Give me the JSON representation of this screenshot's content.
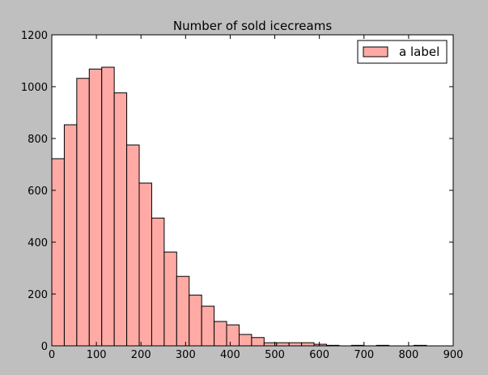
{
  "chart_data": {
    "type": "bar",
    "title": "Number of sold icecreams",
    "xlabel": "",
    "ylabel": "",
    "xlim": [
      0,
      900
    ],
    "ylim": [
      0,
      1200
    ],
    "xticks": [
      0,
      100,
      200,
      300,
      400,
      500,
      600,
      700,
      800,
      900
    ],
    "yticks": [
      0,
      200,
      400,
      600,
      800,
      1000,
      1200
    ],
    "grid": false,
    "legend_position": "top-right",
    "bar_color": "#ffaaa5",
    "edge_color": "#000000",
    "series": [
      {
        "name": "a label",
        "bin_width": 28,
        "bin_starts": [
          0,
          28,
          56,
          84,
          112,
          140,
          168,
          196,
          224,
          252,
          280,
          308,
          336,
          364,
          392,
          420,
          448,
          476,
          504,
          532,
          560,
          588,
          616,
          644,
          672,
          700,
          728,
          756,
          784,
          812,
          840
        ],
        "values": [
          722,
          853,
          1032,
          1068,
          1075,
          976,
          775,
          628,
          493,
          362,
          268,
          196,
          153,
          94,
          81,
          44,
          32,
          12,
          12,
          12,
          12,
          6,
          2,
          0,
          2,
          0,
          2,
          0,
          0,
          2,
          0
        ]
      }
    ]
  }
}
